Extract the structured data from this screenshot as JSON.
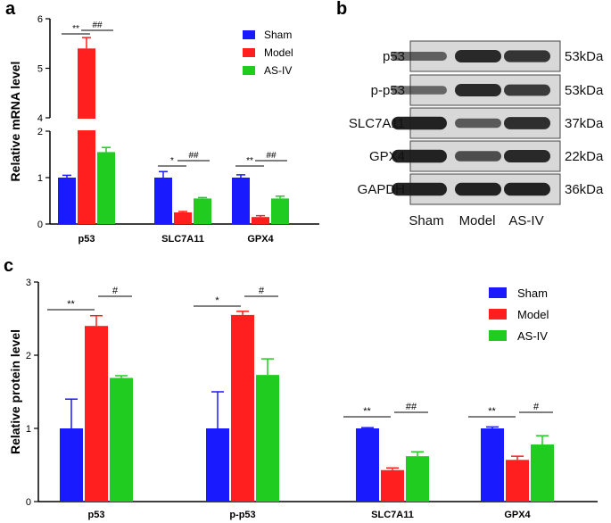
{
  "panels": {
    "a": "a",
    "b": "b",
    "c": "c"
  },
  "colors": {
    "Sham": "#1a1aff",
    "Model": "#ff1f1f",
    "AS-IV": "#1fcc1f",
    "blot_bg": "#d8d8d8",
    "band": "#1c1c1c"
  },
  "chart_data": [
    {
      "id": "a",
      "type": "bar",
      "ylabel": "Relative mRNA level",
      "categories": [
        "p53",
        "SLC7A11",
        "GPX4"
      ],
      "y_axis_break": {
        "lower": [
          0,
          2
        ],
        "upper": [
          4,
          6
        ]
      },
      "lower_ticks": [
        "0",
        "1",
        "2"
      ],
      "upper_ticks": [
        "4",
        "5",
        "6"
      ],
      "legend": [
        "Sham",
        "Model",
        "AS-IV"
      ],
      "series": [
        {
          "name": "Sham",
          "values": [
            1.0,
            1.0,
            1.0
          ],
          "errors": [
            0.05,
            0.13,
            0.06
          ]
        },
        {
          "name": "Model",
          "values": [
            5.4,
            0.25,
            0.15
          ],
          "errors": [
            0.22,
            0.02,
            0.03
          ]
        },
        {
          "name": "AS-IV",
          "values": [
            1.55,
            0.55,
            0.55
          ],
          "errors": [
            0.1,
            0.02,
            0.05
          ]
        }
      ],
      "significance": [
        {
          "category": 0,
          "pair": "Sham-Model",
          "label": "**"
        },
        {
          "category": 0,
          "pair": "Model-AS-IV",
          "label": "##"
        },
        {
          "category": 1,
          "pair": "Sham-Model",
          "label": "*"
        },
        {
          "category": 1,
          "pair": "Model-AS-IV",
          "label": "##"
        },
        {
          "category": 2,
          "pair": "Sham-Model",
          "label": "**"
        },
        {
          "category": 2,
          "pair": "Model-AS-IV",
          "label": "##"
        }
      ]
    },
    {
      "id": "c",
      "type": "bar",
      "ylabel": "Relative protein level",
      "categories": [
        "p53",
        "p-p53",
        "SLC7A11",
        "GPX4"
      ],
      "ylim": [
        0,
        3
      ],
      "ticks": [
        "0",
        "1",
        "2",
        "3"
      ],
      "legend": [
        "Sham",
        "Model",
        "AS-IV"
      ],
      "series": [
        {
          "name": "Sham",
          "values": [
            1.0,
            1.0,
            1.0,
            1.0
          ],
          "errors": [
            0.4,
            0.5,
            0.01,
            0.02
          ]
        },
        {
          "name": "Model",
          "values": [
            2.4,
            2.55,
            0.43,
            0.57
          ],
          "errors": [
            0.14,
            0.05,
            0.03,
            0.05
          ]
        },
        {
          "name": "AS-IV",
          "values": [
            1.69,
            1.73,
            0.62,
            0.78
          ],
          "errors": [
            0.03,
            0.22,
            0.06,
            0.12
          ]
        }
      ],
      "significance": [
        {
          "category": 0,
          "pair": "Sham-Model",
          "label": "**"
        },
        {
          "category": 0,
          "pair": "Model-AS-IV",
          "label": "#"
        },
        {
          "category": 1,
          "pair": "Sham-Model",
          "label": "*"
        },
        {
          "category": 1,
          "pair": "Model-AS-IV",
          "label": "#"
        },
        {
          "category": 2,
          "pair": "Sham-Model",
          "label": "**"
        },
        {
          "category": 2,
          "pair": "Model-AS-IV",
          "label": "##"
        },
        {
          "category": 3,
          "pair": "Sham-Model",
          "label": "**"
        },
        {
          "category": 3,
          "pair": "Model-AS-IV",
          "label": "#"
        }
      ]
    }
  ],
  "western_blot": {
    "proteins": [
      "p53",
      "p-p53",
      "SLC7A11",
      "GPX4",
      "GAPDH"
    ],
    "sizes": [
      "53kDa",
      "53kDa",
      "37kDa",
      "22kDa",
      "36kDa"
    ],
    "lanes": [
      "Sham",
      "Model",
      "AS-IV"
    ],
    "intensities": [
      [
        0.45,
        0.9,
        0.8
      ],
      [
        0.4,
        0.9,
        0.75
      ],
      [
        0.95,
        0.5,
        0.85
      ],
      [
        0.95,
        0.6,
        0.9
      ],
      [
        0.95,
        0.95,
        0.95
      ]
    ]
  }
}
